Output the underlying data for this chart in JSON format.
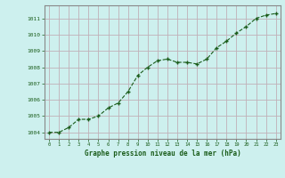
{
  "x": [
    0,
    1,
    2,
    3,
    4,
    5,
    6,
    7,
    8,
    9,
    10,
    11,
    12,
    13,
    14,
    15,
    16,
    17,
    18,
    19,
    20,
    21,
    22,
    23
  ],
  "y": [
    1004.0,
    1004.0,
    1004.3,
    1004.8,
    1004.8,
    1005.0,
    1005.5,
    1005.8,
    1006.5,
    1007.5,
    1008.0,
    1008.4,
    1008.5,
    1008.3,
    1008.3,
    1008.2,
    1008.5,
    1009.2,
    1009.6,
    1010.1,
    1010.5,
    1011.0,
    1011.2,
    1011.3
  ],
  "line_color": "#1a5c1a",
  "marker_color": "#1a5c1a",
  "bg_color": "#cdf0ee",
  "grid_color": "#c0b0b8",
  "xlabel": "Graphe pression niveau de la mer (hPa)",
  "xlabel_color": "#1a5c1a",
  "tick_color": "#1a5c1a",
  "spine_color": "#888888",
  "ylim": [
    1003.6,
    1011.8
  ],
  "xlim": [
    -0.5,
    23.5
  ],
  "yticks": [
    1004,
    1005,
    1006,
    1007,
    1008,
    1009,
    1010,
    1011
  ],
  "xticks": [
    0,
    1,
    2,
    3,
    4,
    5,
    6,
    7,
    8,
    9,
    10,
    11,
    12,
    13,
    14,
    15,
    16,
    17,
    18,
    19,
    20,
    21,
    22,
    23
  ]
}
